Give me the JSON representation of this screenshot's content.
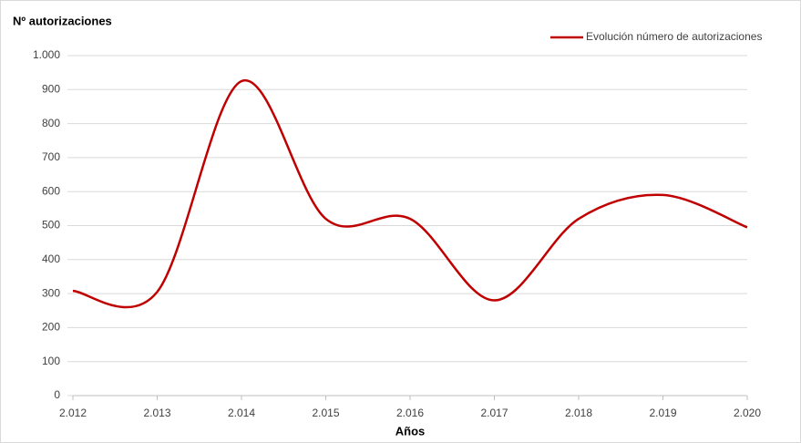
{
  "chart_data": {
    "type": "line",
    "title": "Nº  autorizaciones",
    "x_label": "Años",
    "categories": [
      "2.012",
      "2.013",
      "2.014",
      "2.015",
      "2.016",
      "2.017",
      "2.018",
      "2.019",
      "2.020"
    ],
    "series": [
      {
        "name": "Evolución número de autorizaciones",
        "color": "#c00000",
        "values": [
          308,
          305,
          925,
          520,
          520,
          280,
          520,
          590,
          495
        ]
      }
    ],
    "ylim": [
      0,
      1000
    ],
    "yticks": [
      0,
      100,
      200,
      300,
      400,
      500,
      600,
      700,
      800,
      900,
      {
        "value": 1000,
        "label": "1.000"
      }
    ],
    "grid": true,
    "smooth": true,
    "legend": "top-right"
  }
}
